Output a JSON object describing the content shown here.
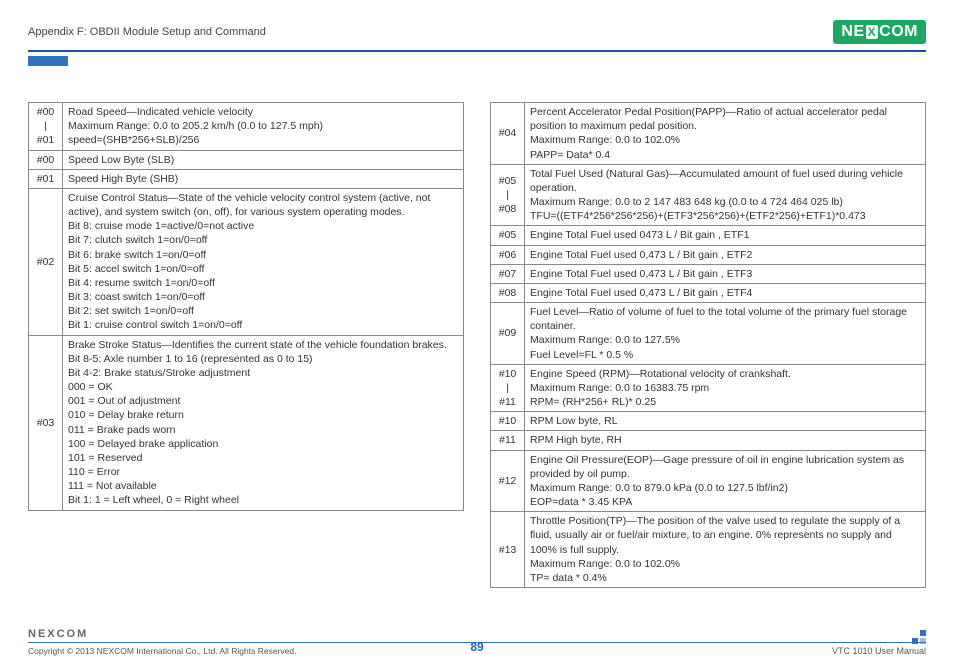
{
  "header": {
    "title": "Appendix F: OBDII Module Setup and Command",
    "logo_text_left": "NE",
    "logo_text_x": "X",
    "logo_text_right": "COM"
  },
  "footer": {
    "logo": "NEXCOM",
    "copyright": "Copyright © 2013 NEXCOM International Co., Ltd. All Rights Reserved.",
    "page": "89",
    "manual": "VTC 1010 User Manual"
  },
  "left_rows": [
    {
      "id": "#00\n|\n#01",
      "text": "Road Speed—Indicated vehicle velocity\nMaximum Range: 0.0 to 205.2 km/h (0.0 to 127.5 mph)\nspeed=(SHB*256+SLB)/256"
    },
    {
      "id": "#00",
      "text": "Speed Low Byte (SLB)"
    },
    {
      "id": "#01",
      "text": "Speed High Byte (SHB)"
    },
    {
      "id": "#02",
      "text": "Cruise Control Status—State of the vehicle velocity control system (active, not active), and system switch (on, off), for various system operating modes.\nBit 8: cruise mode 1=active/0=not active\nBit 7: clutch switch 1=on/0=off\nBit 6: brake switch 1=on/0=off\nBit 5: accel switch 1=on/0=off\nBit 4: resume switch 1=on/0=off\nBit 3: coast switch 1=on/0=off\nBit 2: set switch 1=on/0=off\nBit 1: cruise control switch 1=on/0=off"
    },
    {
      "id": "#03",
      "text": "Brake Stroke Status—Identifies the current state of the vehicle foundation brakes.\nBit 8-5: Axle number 1 to 16 (represented as 0 to 15)\nBit 4-2: Brake status/Stroke adjustment\n000 = OK\n001 = Out of adjustment\n010 = Delay brake return\n011 = Brake pads worn\n100 = Delayed brake application\n101 = Reserved\n110 = Error\n111 = Not available\nBit 1: 1 = Left wheel, 0 = Right wheel"
    }
  ],
  "right_rows": [
    {
      "id": "#04",
      "text": "Percent Accelerator Pedal Position(PAPP)—Ratio of actual accelerator pedal position to maximum pedal position.\nMaximum Range: 0.0 to 102.0%\nPAPP= Data* 0.4"
    },
    {
      "id": "#05\n|\n#08",
      "text": "Total Fuel Used (Natural Gas)—Accumulated amount of fuel used during vehicle operation.\nMaximum Range: 0.0 to 2 147 483 648 kg (0.0 to 4 724 464 025 lb)\nTFU=((ETF4*256*256*256)+(ETF3*256*256)+(ETF2*256)+ETF1)*0.473"
    },
    {
      "id": "#05",
      "text": "Engine Total Fuel used 0473 L / Bit gain , ETF1"
    },
    {
      "id": "#06",
      "text": "Engine Total Fuel used 0,473 L / Bit gain , ETF2"
    },
    {
      "id": "#07",
      "text": "Engine Total Fuel used 0,473 L / Bit gain , ETF3"
    },
    {
      "id": "#08",
      "text": "Engine Total Fuel used 0,473 L / Bit gain , ETF4"
    },
    {
      "id": "#09",
      "text": "Fuel Level—Ratio of volume of fuel to the total volume of the primary fuel storage container.\nMaximum Range: 0.0 to 127.5%\nFuel Level=FL * 0.5 %"
    },
    {
      "id": "#10\n|\n#11",
      "text": "Engine Speed (RPM)—Rotational velocity of crankshaft.\nMaximum Range: 0.0 to 16383.75 rpm\nRPM= (RH*256+ RL)* 0.25"
    },
    {
      "id": "#10",
      "text": "RPM Low byte, RL"
    },
    {
      "id": "#11",
      "text": "RPM High byte, RH"
    },
    {
      "id": "#12",
      "text": "Engine Oil Pressure(EOP)—Gage pressure of oil in engine lubrication system as provided by oil pump.\nMaximum Range: 0.0 to 879.0 kPa (0.0 to 127.5 lbf/in2)\nEOP=data * 3.45 KPA"
    },
    {
      "id": "#13",
      "text": "Throttle Position(TP)—The position of the valve used to regulate the supply of a fluid, usually air or fuel/air mixture, to an engine. 0% represents no supply and 100% is full supply.\nMaximum Range: 0.0 to 102.0%\nTP= data * 0.4%"
    }
  ]
}
